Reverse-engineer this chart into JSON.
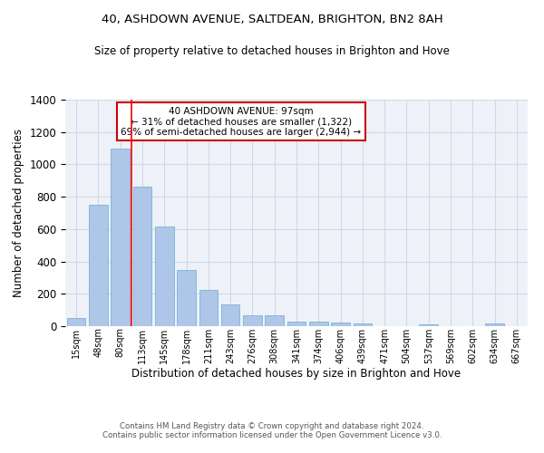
{
  "title1": "40, ASHDOWN AVENUE, SALTDEAN, BRIGHTON, BN2 8AH",
  "title2": "Size of property relative to detached houses in Brighton and Hove",
  "xlabel": "Distribution of detached houses by size in Brighton and Hove",
  "ylabel": "Number of detached properties",
  "footer1": "Contains HM Land Registry data © Crown copyright and database right 2024.",
  "footer2": "Contains public sector information licensed under the Open Government Licence v3.0.",
  "categories": [
    "15sqm",
    "48sqm",
    "80sqm",
    "113sqm",
    "145sqm",
    "178sqm",
    "211sqm",
    "243sqm",
    "276sqm",
    "308sqm",
    "341sqm",
    "374sqm",
    "406sqm",
    "439sqm",
    "471sqm",
    "504sqm",
    "537sqm",
    "569sqm",
    "602sqm",
    "634sqm",
    "667sqm"
  ],
  "values": [
    50,
    750,
    1100,
    865,
    615,
    345,
    225,
    135,
    65,
    70,
    30,
    30,
    22,
    15,
    0,
    0,
    12,
    0,
    0,
    15,
    0
  ],
  "bar_color": "#aec6e8",
  "bar_edge_color": "#6aaad4",
  "grid_color": "#d0d8e8",
  "background_color": "#eef2f8",
  "annotation_box_color": "#ffffff",
  "annotation_border_color": "#cc0000",
  "property_label": "40 ASHDOWN AVENUE: 97sqm",
  "annotation_line1": "← 31% of detached houses are smaller (1,322)",
  "annotation_line2": "69% of semi-detached houses are larger (2,944) →",
  "ylim": [
    0,
    1400
  ],
  "yticks": [
    0,
    200,
    400,
    600,
    800,
    1000,
    1200,
    1400
  ]
}
